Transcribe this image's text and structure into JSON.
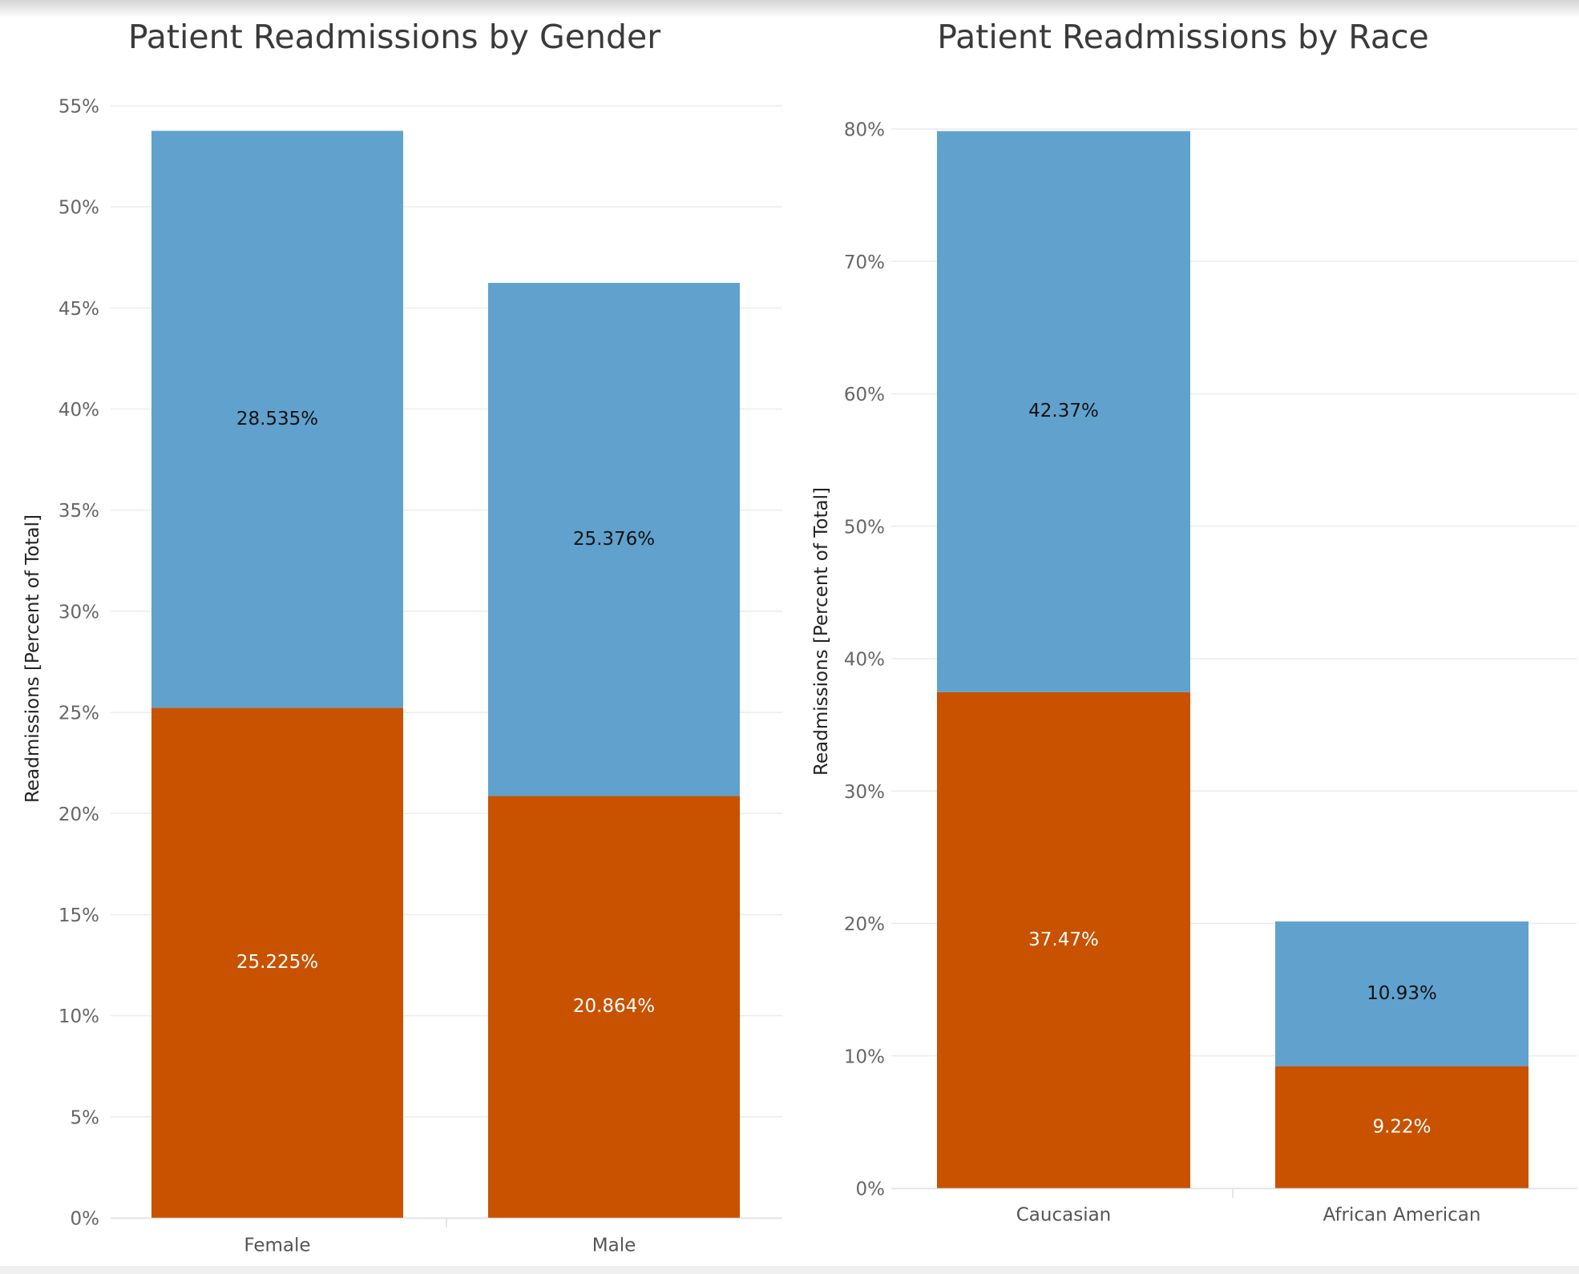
{
  "colors": {
    "upper_segment": "#60a2cd",
    "lower_segment": "#c85200",
    "upper_label": "#111111",
    "lower_label": "#ffffff",
    "gridline": "#ececec"
  },
  "chart_data": [
    {
      "type": "bar",
      "stacked": true,
      "title": "Patient Readmissions by Gender",
      "ylabel": "Readmissions [Percent of Total]",
      "xlabel": "",
      "categories": [
        "Female",
        "Male"
      ],
      "series": [
        {
          "values": [
            25.225,
            20.864
          ],
          "labels": [
            "25.225%",
            "20.864%"
          ]
        },
        {
          "values": [
            28.535,
            25.376
          ],
          "labels": [
            "28.535%",
            "25.376%"
          ]
        }
      ],
      "ylim": [
        0,
        55
      ],
      "yticks": [
        0,
        5,
        10,
        15,
        20,
        25,
        30,
        35,
        40,
        45,
        50,
        55
      ],
      "ytick_labels": [
        "0%",
        "5%",
        "10%",
        "15%",
        "20%",
        "25%",
        "30%",
        "35%",
        "40%",
        "45%",
        "50%",
        "55%"
      ],
      "grid": true,
      "legend": "none"
    },
    {
      "type": "bar",
      "stacked": true,
      "title": "Patient Readmissions by Race",
      "ylabel": "Readmissions [Percent of Total]",
      "xlabel": "",
      "categories": [
        "Caucasian",
        "African American"
      ],
      "series": [
        {
          "values": [
            37.47,
            9.22
          ],
          "labels": [
            "37.47%",
            "9.22%"
          ]
        },
        {
          "values": [
            42.37,
            10.93
          ],
          "labels": [
            "42.37%",
            "10.93%"
          ]
        }
      ],
      "ylim": [
        0,
        80
      ],
      "yticks": [
        0,
        10,
        20,
        30,
        40,
        50,
        60,
        70,
        80
      ],
      "ytick_labels": [
        "0%",
        "10%",
        "20%",
        "30%",
        "40%",
        "50%",
        "60%",
        "70%",
        "80%"
      ],
      "grid": true,
      "legend": "none"
    }
  ]
}
